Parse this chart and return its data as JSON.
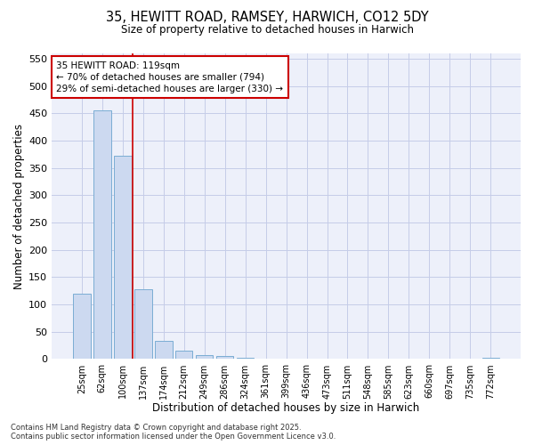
{
  "title1": "35, HEWITT ROAD, RAMSEY, HARWICH, CO12 5DY",
  "title2": "Size of property relative to detached houses in Harwich",
  "xlabel": "Distribution of detached houses by size in Harwich",
  "ylabel": "Number of detached properties",
  "categories": [
    "25sqm",
    "62sqm",
    "100sqm",
    "137sqm",
    "174sqm",
    "212sqm",
    "249sqm",
    "286sqm",
    "324sqm",
    "361sqm",
    "399sqm",
    "436sqm",
    "473sqm",
    "511sqm",
    "548sqm",
    "585sqm",
    "623sqm",
    "660sqm",
    "697sqm",
    "735sqm",
    "772sqm"
  ],
  "values": [
    119,
    456,
    372,
    128,
    33,
    15,
    8,
    5,
    3,
    0,
    0,
    0,
    0,
    0,
    0,
    0,
    0,
    0,
    0,
    0,
    3
  ],
  "bar_color": "#ccd9f0",
  "bar_edge_color": "#7aadd4",
  "vline_color": "#cc0000",
  "annotation_text": "35 HEWITT ROAD: 119sqm\n← 70% of detached houses are smaller (794)\n29% of semi-detached houses are larger (330) →",
  "annotation_box_color": "#ffffff",
  "annotation_box_edge": "#cc0000",
  "ylim": [
    0,
    560
  ],
  "yticks": [
    0,
    50,
    100,
    150,
    200,
    250,
    300,
    350,
    400,
    450,
    500,
    550
  ],
  "footer": "Contains HM Land Registry data © Crown copyright and database right 2025.\nContains public sector information licensed under the Open Government Licence v3.0.",
  "bg_color": "#edf0fa",
  "grid_color": "#c5cce8"
}
